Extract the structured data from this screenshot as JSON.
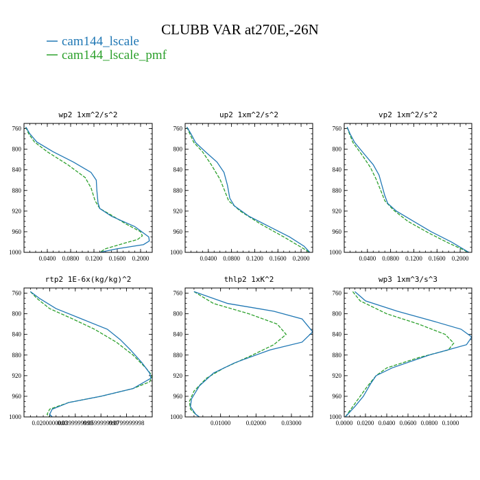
{
  "title": "CLUBB VAR at270E,-26N",
  "legend": [
    {
      "name": "cam144_lscale",
      "color": "#1f77b4",
      "dash": ""
    },
    {
      "name": "cam144_lscale_pmf",
      "color": "#2ca02c",
      "dash": "5,2"
    }
  ],
  "chart_data": [
    {
      "type": "line",
      "title": "wp2  1xm^2/s^2",
      "ylim": [
        1000,
        750
      ],
      "yticks": [
        760,
        800,
        840,
        880,
        920,
        960,
        1000
      ],
      "xlim": [
        0,
        0.22
      ],
      "xticks": [
        0.04,
        0.08,
        0.12,
        0.16,
        0.2
      ],
      "xtick_labels": [
        "0.0400",
        "0.0800",
        "0.1200",
        "0.1600",
        "0.2000"
      ],
      "series": [
        {
          "name": "cam144_lscale",
          "points": [
            [
              0.003,
              757
            ],
            [
              0.01,
              770
            ],
            [
              0.022,
              786
            ],
            [
              0.05,
              805
            ],
            [
              0.085,
              825
            ],
            [
              0.115,
              845
            ],
            [
              0.124,
              860
            ],
            [
              0.125,
              880
            ],
            [
              0.127,
              904
            ],
            [
              0.13,
              915
            ],
            [
              0.15,
              930
            ],
            [
              0.19,
              950
            ],
            [
              0.214,
              970
            ],
            [
              0.215,
              978
            ],
            [
              0.205,
              985
            ],
            [
              0.16,
              993
            ],
            [
              0.13,
              1000
            ]
          ]
        },
        {
          "name": "cam144_lscale_pmf",
          "points": [
            [
              0.003,
              757
            ],
            [
              0.008,
              770
            ],
            [
              0.018,
              786
            ],
            [
              0.04,
              805
            ],
            [
              0.075,
              830
            ],
            [
              0.105,
              855
            ],
            [
              0.115,
              875
            ],
            [
              0.122,
              900
            ],
            [
              0.13,
              915
            ],
            [
              0.15,
              928
            ],
            [
              0.175,
              945
            ],
            [
              0.2,
              960
            ],
            [
              0.203,
              968
            ],
            [
              0.195,
              975
            ],
            [
              0.17,
              983
            ],
            [
              0.14,
              993
            ],
            [
              0.13,
              1000
            ]
          ]
        }
      ]
    },
    {
      "type": "line",
      "title": "up2  1xm^2/s^2",
      "ylim": [
        1000,
        750
      ],
      "yticks": [
        760,
        800,
        840,
        880,
        920,
        960,
        1000
      ],
      "xlim": [
        0,
        0.22
      ],
      "xticks": [
        0.04,
        0.08,
        0.12,
        0.16,
        0.2
      ],
      "xtick_labels": [
        "0.0400",
        "0.0800",
        "0.1200",
        "0.1600",
        "0.2000"
      ],
      "series": [
        {
          "name": "cam144_lscale",
          "points": [
            [
              0.003,
              757
            ],
            [
              0.01,
              770
            ],
            [
              0.018,
              787
            ],
            [
              0.035,
              805
            ],
            [
              0.055,
              825
            ],
            [
              0.067,
              845
            ],
            [
              0.073,
              870
            ],
            [
              0.077,
              895
            ],
            [
              0.085,
              910
            ],
            [
              0.11,
              930
            ],
            [
              0.145,
              950
            ],
            [
              0.18,
              970
            ],
            [
              0.205,
              988
            ],
            [
              0.215,
              1000
            ]
          ]
        },
        {
          "name": "cam144_lscale_pmf",
          "points": [
            [
              0.003,
              757
            ],
            [
              0.008,
              770
            ],
            [
              0.015,
              787
            ],
            [
              0.03,
              805
            ],
            [
              0.045,
              830
            ],
            [
              0.06,
              858
            ],
            [
              0.068,
              880
            ],
            [
              0.075,
              900
            ],
            [
              0.095,
              920
            ],
            [
              0.13,
              945
            ],
            [
              0.17,
              970
            ],
            [
              0.2,
              990
            ],
            [
              0.215,
              1000
            ]
          ]
        }
      ]
    },
    {
      "type": "line",
      "title": "vp2  1xm^2/s^2",
      "ylim": [
        1000,
        750
      ],
      "yticks": [
        760,
        800,
        840,
        880,
        920,
        960,
        1000
      ],
      "xlim": [
        0,
        0.22
      ],
      "xticks": [
        0.04,
        0.08,
        0.12,
        0.16,
        0.2
      ],
      "xtick_labels": [
        "0.0400",
        "0.0800",
        "0.1200",
        "0.1600",
        "0.2000"
      ],
      "series": [
        {
          "name": "cam144_lscale",
          "points": [
            [
              0.005,
              757
            ],
            [
              0.01,
              770
            ],
            [
              0.018,
              787
            ],
            [
              0.035,
              810
            ],
            [
              0.05,
              830
            ],
            [
              0.06,
              850
            ],
            [
              0.065,
              870
            ],
            [
              0.07,
              890
            ],
            [
              0.075,
              905
            ],
            [
              0.09,
              920
            ],
            [
              0.12,
              940
            ],
            [
              0.15,
              960
            ],
            [
              0.185,
              980
            ],
            [
              0.215,
              1000
            ]
          ]
        },
        {
          "name": "cam144_lscale_pmf",
          "points": [
            [
              0.005,
              757
            ],
            [
              0.009,
              770
            ],
            [
              0.015,
              787
            ],
            [
              0.03,
              810
            ],
            [
              0.045,
              835
            ],
            [
              0.055,
              858
            ],
            [
              0.063,
              880
            ],
            [
              0.07,
              900
            ],
            [
              0.085,
              918
            ],
            [
              0.11,
              940
            ],
            [
              0.145,
              962
            ],
            [
              0.18,
              982
            ],
            [
              0.215,
              1000
            ]
          ]
        }
      ]
    },
    {
      "type": "line",
      "title": "rtp2  1E-6x(kg/kg)^2",
      "ylim": [
        1000,
        750
      ],
      "yticks": [
        760,
        800,
        840,
        880,
        920,
        960,
        1000
      ],
      "xlim": [
        0,
        1e-07
      ],
      "xticks": [
        2e-08,
        4e-08,
        6e-08,
        8e-08
      ],
      "xtick_labels": [
        "0.0200000000",
        "0.0399999999",
        "0.0599999999",
        "0.0799999998"
      ],
      "series": [
        {
          "name": "cam144_lscale",
          "points": [
            [
              5e-09,
              757
            ],
            [
              1.2e-08,
              770
            ],
            [
              2.5e-08,
              790
            ],
            [
              4.5e-08,
              810
            ],
            [
              6.5e-08,
              830
            ],
            [
              7.5e-08,
              850
            ],
            [
              8.3e-08,
              870
            ],
            [
              9.2e-08,
              895
            ],
            [
              9.8e-08,
              915
            ],
            [
              9.9e-08,
              925
            ],
            [
              8.5e-08,
              945
            ],
            [
              6e-08,
              960
            ],
            [
              3.5e-08,
              972
            ],
            [
              2.2e-08,
              985
            ],
            [
              2e-08,
              995
            ],
            [
              2.2e-08,
              1000
            ]
          ]
        },
        {
          "name": "cam144_lscale_pmf",
          "points": [
            [
              5e-09,
              757
            ],
            [
              1e-08,
              770
            ],
            [
              2e-08,
              790
            ],
            [
              3.8e-08,
              810
            ],
            [
              5.5e-08,
              830
            ],
            [
              7.2e-08,
              855
            ],
            [
              8.5e-08,
              880
            ],
            [
              9.5e-08,
              905
            ],
            [
              1e-07,
              920
            ],
            [
              9.8e-08,
              932
            ],
            [
              8.5e-08,
              945
            ],
            [
              6e-08,
              960
            ],
            [
              3.5e-08,
              972
            ],
            [
              2e-08,
              985
            ],
            [
              1.8e-08,
              995
            ],
            [
              2e-08,
              1000
            ]
          ]
        }
      ]
    },
    {
      "type": "line",
      "title": "thlp2  1xK^2",
      "ylim": [
        1000,
        750
      ],
      "yticks": [
        760,
        800,
        840,
        880,
        920,
        960,
        1000
      ],
      "xlim": [
        0,
        0.036
      ],
      "xticks": [
        0.01,
        0.02,
        0.03
      ],
      "xtick_labels": [
        "0.01000",
        "0.02000",
        "0.03000"
      ],
      "series": [
        {
          "name": "cam144_lscale",
          "points": [
            [
              0.0025,
              757
            ],
            [
              0.012,
              780
            ],
            [
              0.025,
              795
            ],
            [
              0.033,
              810
            ],
            [
              0.036,
              835
            ],
            [
              0.033,
              855
            ],
            [
              0.024,
              870
            ],
            [
              0.014,
              895
            ],
            [
              0.008,
              915
            ],
            [
              0.004,
              940
            ],
            [
              0.0018,
              965
            ],
            [
              0.0015,
              980
            ],
            [
              0.003,
              995
            ],
            [
              0.004,
              1000
            ]
          ]
        },
        {
          "name": "cam144_lscale_pmf",
          "points": [
            [
              0.0025,
              757
            ],
            [
              0.008,
              780
            ],
            [
              0.018,
              800
            ],
            [
              0.026,
              820
            ],
            [
              0.0285,
              840
            ],
            [
              0.025,
              860
            ],
            [
              0.019,
              880
            ],
            [
              0.011,
              905
            ],
            [
              0.006,
              925
            ],
            [
              0.0025,
              950
            ],
            [
              0.0012,
              970
            ],
            [
              0.0015,
              985
            ],
            [
              0.003,
              995
            ],
            [
              0.004,
              1000
            ]
          ]
        }
      ]
    },
    {
      "type": "line",
      "title": "wp3  1xm^3/s^3",
      "ylim": [
        1000,
        750
      ],
      "yticks": [
        760,
        800,
        840,
        880,
        920,
        960,
        1000
      ],
      "xlim": [
        0,
        0.12
      ],
      "xticks": [
        0,
        0.02,
        0.04,
        0.06,
        0.08,
        0.1
      ],
      "xtick_labels": [
        "0.0000",
        "0.0200",
        "0.0400",
        "0.0600",
        "0.0800",
        "0.1000"
      ],
      "series": [
        {
          "name": "cam144_lscale",
          "points": [
            [
              0.01,
              757
            ],
            [
              0.02,
              775
            ],
            [
              0.05,
              795
            ],
            [
              0.085,
              815
            ],
            [
              0.11,
              830
            ],
            [
              0.12,
              845
            ],
            [
              0.115,
              860
            ],
            [
              0.08,
              880
            ],
            [
              0.045,
              905
            ],
            [
              0.03,
              920
            ],
            [
              0.025,
              935
            ],
            [
              0.018,
              960
            ],
            [
              0.01,
              980
            ],
            [
              0.001,
              1000
            ]
          ]
        },
        {
          "name": "cam144_lscale_pmf",
          "points": [
            [
              0.008,
              757
            ],
            [
              0.015,
              775
            ],
            [
              0.04,
              800
            ],
            [
              0.07,
              820
            ],
            [
              0.095,
              840
            ],
            [
              0.103,
              857
            ],
            [
              0.098,
              870
            ],
            [
              0.07,
              885
            ],
            [
              0.04,
              905
            ],
            [
              0.03,
              920
            ],
            [
              0.022,
              940
            ],
            [
              0.015,
              960
            ],
            [
              0.008,
              980
            ],
            [
              0.001,
              1000
            ]
          ]
        }
      ]
    }
  ]
}
